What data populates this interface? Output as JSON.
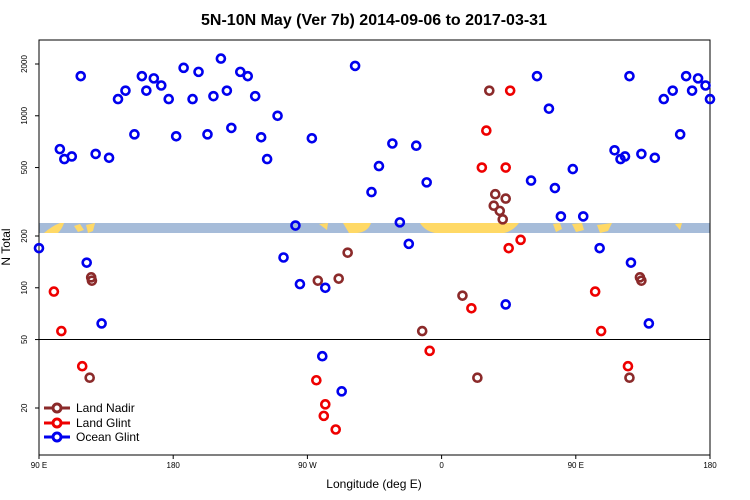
{
  "chart_data": {
    "type": "scatter",
    "title": "5N-10N May (Ver 7b)   2014-09-06 to 2017-03-31",
    "xlabel": "Longitude (deg E)",
    "ylabel": "N Total",
    "x_ticks": [
      {
        "value": 90,
        "label": "90 E"
      },
      {
        "value": 180,
        "label": "180"
      },
      {
        "value": 270,
        "label": "90 W"
      },
      {
        "value": 360,
        "label": "0"
      },
      {
        "value": 450,
        "label": "90 E"
      },
      {
        "value": 540,
        "label": "180"
      }
    ],
    "y_ticks": [
      "20",
      "50",
      "100",
      "200",
      "500",
      "1000",
      "2000"
    ],
    "y_scale": "log",
    "legend_position": "bottom-left",
    "colors": {
      "land_nadir": "#8b2a2a",
      "land_glint": "#ee0000",
      "ocean_glint": "#0000ee",
      "land_band": "#ffd966",
      "ocean_band": "#a6bcd9"
    },
    "series": [
      {
        "name": "Land Nadir",
        "points": [
          [
            124,
            30
          ],
          [
            125,
            115
          ],
          [
            125.5,
            110
          ],
          [
            277,
            110
          ],
          [
            291,
            113
          ],
          [
            297,
            160
          ],
          [
            347,
            56
          ],
          [
            374,
            90
          ],
          [
            384,
            30
          ],
          [
            392,
            1400
          ],
          [
            395,
            300
          ],
          [
            396,
            350
          ],
          [
            399,
            280
          ],
          [
            401,
            250
          ],
          [
            403,
            330
          ],
          [
            486,
            30
          ],
          [
            493,
            115
          ],
          [
            494,
            110
          ]
        ]
      },
      {
        "name": "Land Glint",
        "points": [
          [
            100,
            95
          ],
          [
            105,
            56
          ],
          [
            119,
            35
          ],
          [
            276,
            29
          ],
          [
            281,
            18
          ],
          [
            282,
            21
          ],
          [
            289,
            15
          ],
          [
            352,
            43
          ],
          [
            380,
            76
          ],
          [
            387,
            500
          ],
          [
            390,
            820
          ],
          [
            403,
            500
          ],
          [
            405,
            170
          ],
          [
            406,
            1400
          ],
          [
            413,
            190
          ],
          [
            463,
            95
          ],
          [
            467,
            56
          ],
          [
            485,
            35
          ]
        ]
      },
      {
        "name": "Ocean Glint",
        "points": [
          [
            90,
            170
          ],
          [
            104,
            640
          ],
          [
            107,
            560
          ],
          [
            112,
            580
          ],
          [
            118,
            1700
          ],
          [
            122,
            140
          ],
          [
            128,
            600
          ],
          [
            132,
            62
          ],
          [
            137,
            570
          ],
          [
            143,
            1250
          ],
          [
            148,
            1400
          ],
          [
            154,
            780
          ],
          [
            159,
            1700
          ],
          [
            162,
            1400
          ],
          [
            167,
            1650
          ],
          [
            172,
            1500
          ],
          [
            177,
            1250
          ],
          [
            182,
            760
          ],
          [
            187,
            1900
          ],
          [
            193,
            1250
          ],
          [
            197,
            1800
          ],
          [
            203,
            780
          ],
          [
            207,
            1300
          ],
          [
            212,
            2150
          ],
          [
            216,
            1400
          ],
          [
            219,
            850
          ],
          [
            225,
            1800
          ],
          [
            230,
            1700
          ],
          [
            235,
            1300
          ],
          [
            239,
            750
          ],
          [
            243,
            560
          ],
          [
            250,
            1000
          ],
          [
            254,
            150
          ],
          [
            262,
            230
          ],
          [
            265,
            105
          ],
          [
            273,
            740
          ],
          [
            280,
            40
          ],
          [
            282,
            100
          ],
          [
            293,
            25
          ],
          [
            302,
            1950
          ],
          [
            313,
            360
          ],
          [
            318,
            510
          ],
          [
            327,
            690
          ],
          [
            332,
            240
          ],
          [
            338,
            180
          ],
          [
            343,
            670
          ],
          [
            350,
            410
          ],
          [
            403,
            80
          ],
          [
            420,
            420
          ],
          [
            424,
            1700
          ],
          [
            432,
            1100
          ],
          [
            436,
            380
          ],
          [
            440,
            260
          ],
          [
            448,
            490
          ],
          [
            455,
            260
          ],
          [
            466,
            170
          ],
          [
            476,
            630
          ],
          [
            480,
            560
          ],
          [
            483,
            580
          ],
          [
            486,
            1700
          ],
          [
            487,
            140
          ],
          [
            494,
            600
          ],
          [
            499,
            62
          ],
          [
            503,
            570
          ],
          [
            509,
            1250
          ],
          [
            515,
            1400
          ],
          [
            520,
            780
          ],
          [
            524,
            1700
          ],
          [
            528,
            1400
          ],
          [
            532,
            1650
          ],
          [
            537,
            1500
          ],
          [
            540,
            1250
          ]
        ]
      }
    ]
  }
}
